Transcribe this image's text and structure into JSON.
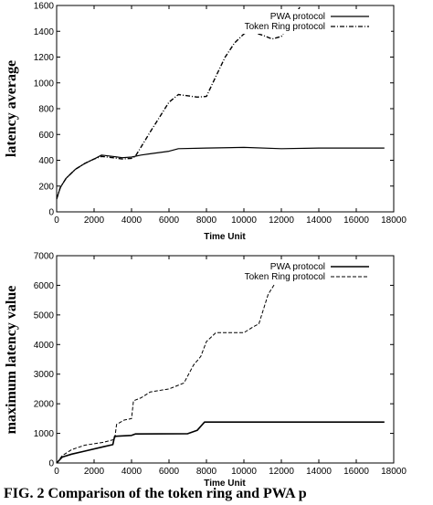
{
  "caption": "FIG. 2 Comparison of the token ring and PWA p",
  "chart_data": [
    {
      "type": "line",
      "title": "",
      "xlabel": "Time Unit",
      "ylabel": "latency average",
      "xlim": [
        0,
        18000
      ],
      "ylim": [
        0,
        1600
      ],
      "xticks": [
        0,
        2000,
        4000,
        6000,
        8000,
        10000,
        12000,
        14000,
        16000,
        18000
      ],
      "yticks": [
        0,
        200,
        400,
        600,
        800,
        1000,
        1200,
        1400,
        1600
      ],
      "grid": false,
      "legend_position": "top-right",
      "series": [
        {
          "name": "PWA protocol",
          "style": "solid",
          "points": [
            [
              0,
              100
            ],
            [
              200,
              190
            ],
            [
              500,
              260
            ],
            [
              1000,
              330
            ],
            [
              1500,
              375
            ],
            [
              2000,
              410
            ],
            [
              2400,
              440
            ],
            [
              3000,
              430
            ],
            [
              3500,
              420
            ],
            [
              4000,
              425
            ],
            [
              4500,
              440
            ],
            [
              5000,
              450
            ],
            [
              6000,
              470
            ],
            [
              6500,
              490
            ],
            [
              8000,
              495
            ],
            [
              10000,
              500
            ],
            [
              12000,
              490
            ],
            [
              14000,
              495
            ],
            [
              16000,
              495
            ],
            [
              17500,
              495
            ]
          ]
        },
        {
          "name": "Token Ring protocol",
          "style": "dashed",
          "points": [
            [
              0,
              100
            ],
            [
              200,
              190
            ],
            [
              500,
              260
            ],
            [
              1000,
              330
            ],
            [
              1500,
              375
            ],
            [
              2000,
              410
            ],
            [
              2400,
              430
            ],
            [
              3000,
              420
            ],
            [
              3500,
              410
            ],
            [
              4000,
              415
            ],
            [
              4200,
              430
            ],
            [
              5000,
              620
            ],
            [
              6000,
              850
            ],
            [
              6500,
              910
            ],
            [
              7500,
              890
            ],
            [
              8000,
              895
            ],
            [
              8500,
              1050
            ],
            [
              9000,
              1200
            ],
            [
              9500,
              1310
            ],
            [
              10000,
              1380
            ],
            [
              10300,
              1400
            ],
            [
              11000,
              1370
            ],
            [
              11500,
              1340
            ],
            [
              12000,
              1360
            ],
            [
              12400,
              1450
            ],
            [
              13000,
              1590
            ],
            [
              13200,
              1640
            ]
          ]
        }
      ]
    },
    {
      "type": "line",
      "title": "",
      "xlabel": "Time Unit",
      "ylabel": "maximum latency value",
      "xlim": [
        0,
        18000
      ],
      "ylim": [
        0,
        7000
      ],
      "xticks": [
        0,
        2000,
        4000,
        6000,
        8000,
        10000,
        12000,
        14000,
        16000,
        18000
      ],
      "yticks": [
        0,
        1000,
        2000,
        3000,
        4000,
        5000,
        6000,
        7000
      ],
      "grid": false,
      "legend_position": "top-right",
      "series": [
        {
          "name": "PWA protocol",
          "style": "solid",
          "points": [
            [
              0,
              0
            ],
            [
              300,
              200
            ],
            [
              800,
              300
            ],
            [
              1500,
              400
            ],
            [
              2500,
              550
            ],
            [
              3000,
              620
            ],
            [
              3100,
              900
            ],
            [
              4000,
              930
            ],
            [
              4200,
              980
            ],
            [
              7000,
              990
            ],
            [
              7500,
              1100
            ],
            [
              7900,
              1380
            ],
            [
              17500,
              1380
            ]
          ]
        },
        {
          "name": "Token Ring protocol",
          "style": "dashed",
          "points": [
            [
              0,
              0
            ],
            [
              300,
              250
            ],
            [
              800,
              450
            ],
            [
              1500,
              600
            ],
            [
              2500,
              700
            ],
            [
              3100,
              800
            ],
            [
              3200,
              1300
            ],
            [
              3600,
              1450
            ],
            [
              4000,
              1500
            ],
            [
              4100,
              2100
            ],
            [
              4500,
              2200
            ],
            [
              5000,
              2400
            ],
            [
              6000,
              2500
            ],
            [
              6800,
              2700
            ],
            [
              7300,
              3300
            ],
            [
              7700,
              3600
            ],
            [
              8000,
              4100
            ],
            [
              8500,
              4400
            ],
            [
              10000,
              4400
            ],
            [
              10500,
              4600
            ],
            [
              10800,
              4700
            ],
            [
              11000,
              5100
            ],
            [
              11300,
              5700
            ],
            [
              11600,
              6000
            ],
            [
              11900,
              6300
            ],
            [
              12200,
              6400
            ],
            [
              12500,
              6550
            ]
          ]
        }
      ]
    }
  ]
}
